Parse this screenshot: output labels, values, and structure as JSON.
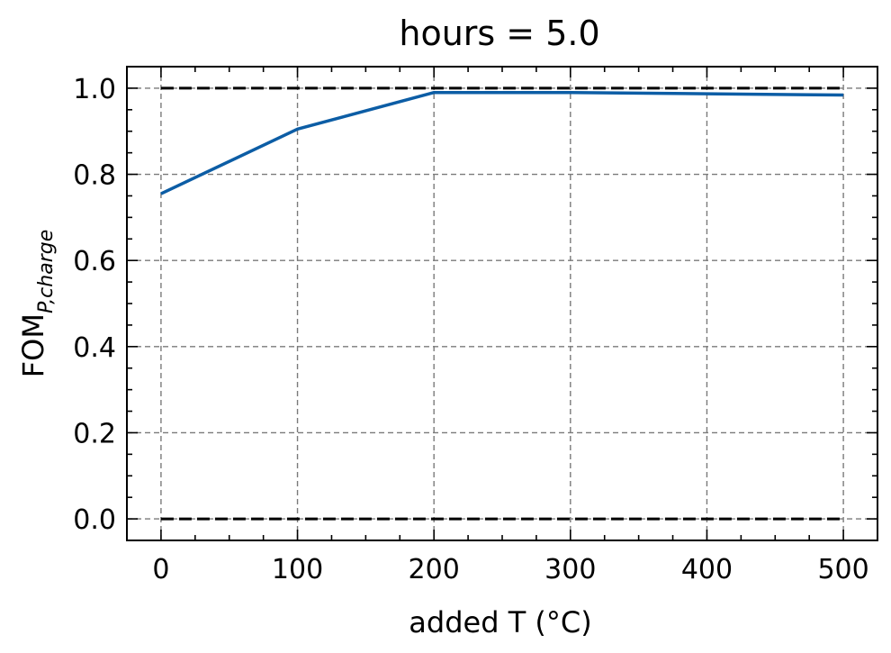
{
  "chart_data": {
    "type": "line",
    "title": "hours = 5.0",
    "xlabel": "added T (°C)",
    "ylabel": {
      "main": "FOM",
      "sub": "P,charge"
    },
    "xlim": [
      -25,
      525
    ],
    "ylim": [
      -0.05,
      1.05
    ],
    "xticks": [
      0,
      100,
      200,
      300,
      400,
      500
    ],
    "yticks": [
      0.0,
      0.2,
      0.4,
      0.6,
      0.8,
      1.0
    ],
    "xtick_labels": [
      "0",
      "100",
      "200",
      "300",
      "400",
      "500"
    ],
    "ytick_labels": [
      "0.0",
      "0.2",
      "0.4",
      "0.6",
      "0.8",
      "1.0"
    ],
    "x_minor_step": 25,
    "y_minor_step": 0.05,
    "grid": true,
    "series": [
      {
        "x": [
          0,
          100,
          200,
          300,
          400,
          500
        ],
        "values": [
          0.755,
          0.905,
          0.99,
          0.99,
          0.987,
          0.984
        ],
        "color": "#0C5DA5"
      }
    ],
    "reference_lines": [
      {
        "y": 1.0,
        "color": "#000000",
        "style": "dashed"
      },
      {
        "y": 0.0,
        "color": "#000000",
        "style": "dashed"
      }
    ]
  }
}
